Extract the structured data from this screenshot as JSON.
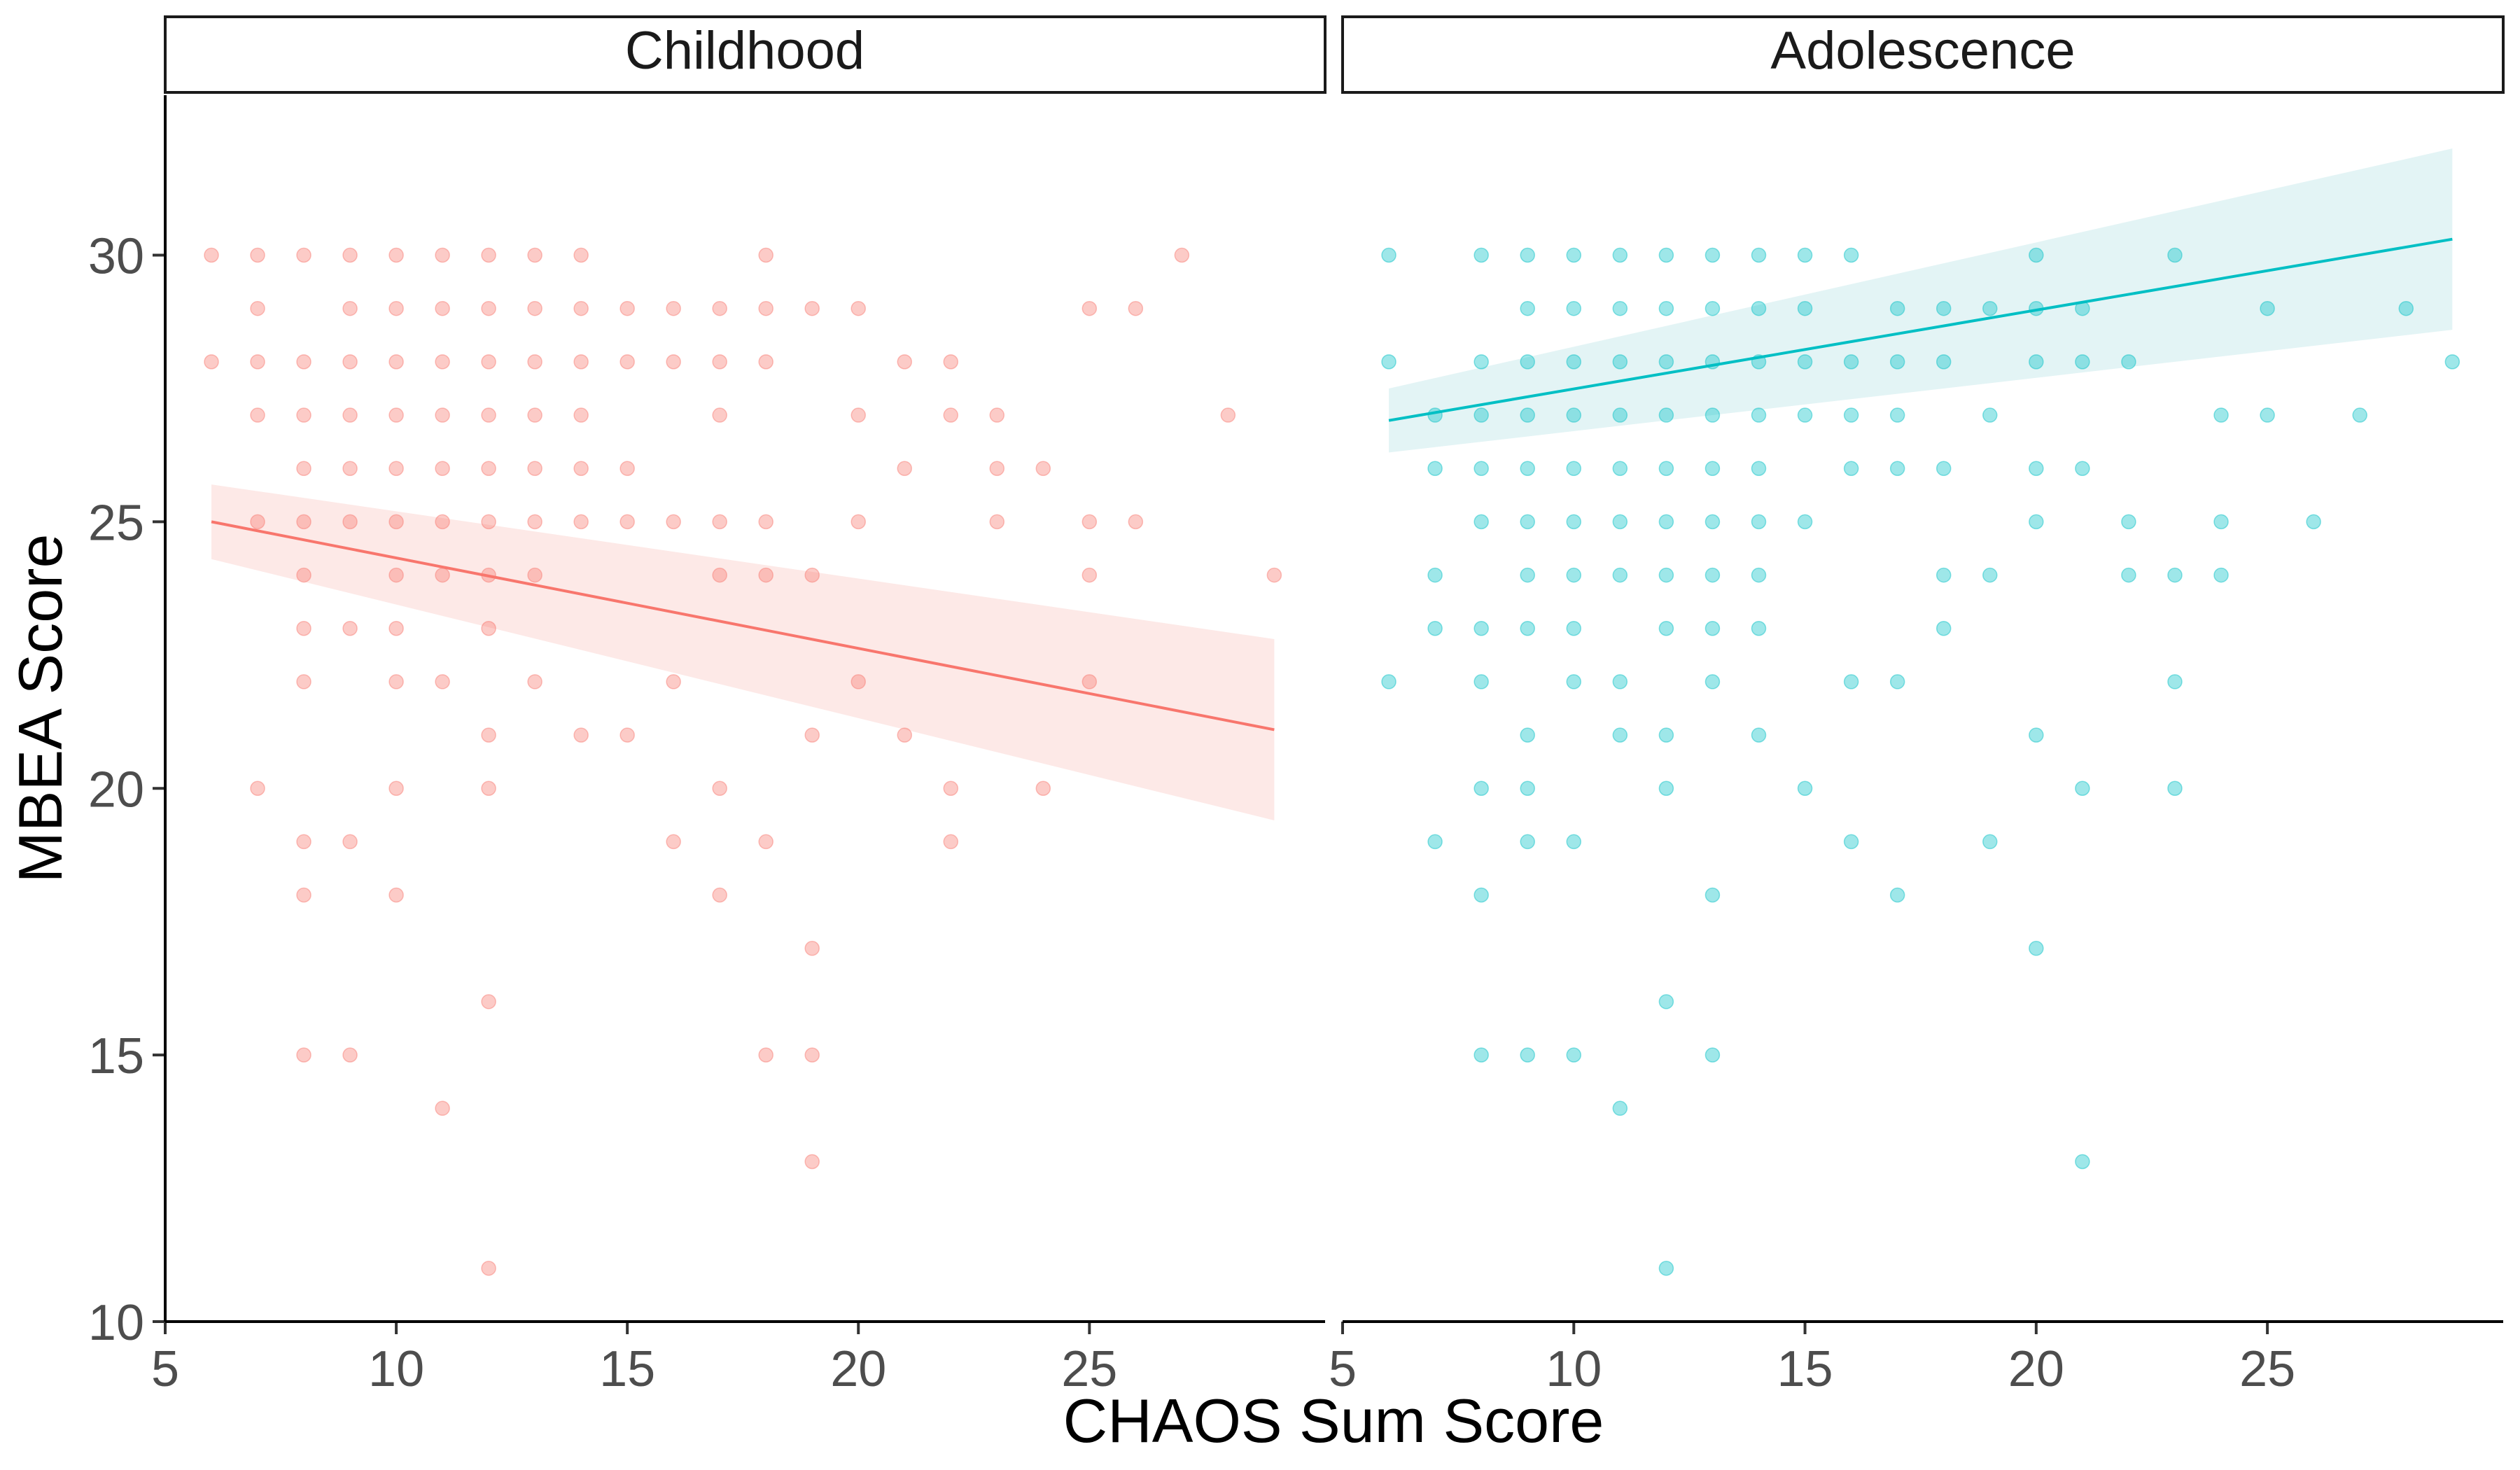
{
  "chart_data": {
    "type": "scatter",
    "xlabel": "CHAOS Sum Score",
    "ylabel": "MBEA Score",
    "xlim": [
      5,
      30.1
    ],
    "ylim": [
      10,
      33
    ],
    "x_ticks": [
      "5",
      "10",
      "15",
      "20",
      "25"
    ],
    "y_ticks": [
      "10",
      "15",
      "20",
      "25",
      "30"
    ],
    "grid": false,
    "legend": "none",
    "panels": [
      {
        "label": "Childhood",
        "color": "#F8766D",
        "fill": "#FDE9E7",
        "fit": {
          "x": [
            6,
            29
          ],
          "y": [
            25.0,
            21.1
          ]
        },
        "ribbon": {
          "x": [
            6,
            29
          ],
          "lower": [
            24.3,
            19.4
          ],
          "upper": [
            25.7,
            22.8
          ]
        },
        "points": [
          [
            6,
            30
          ],
          [
            6,
            28
          ],
          [
            7,
            30
          ],
          [
            7,
            29
          ],
          [
            7,
            28
          ],
          [
            7,
            27
          ],
          [
            7,
            25
          ],
          [
            7,
            20
          ],
          [
            8,
            30
          ],
          [
            8,
            28
          ],
          [
            8,
            27
          ],
          [
            8,
            26
          ],
          [
            8,
            25
          ],
          [
            8,
            24
          ],
          [
            8,
            23
          ],
          [
            8,
            22
          ],
          [
            8,
            19
          ],
          [
            8,
            18
          ],
          [
            8,
            15
          ],
          [
            9,
            30
          ],
          [
            9,
            29
          ],
          [
            9,
            28
          ],
          [
            9,
            27
          ],
          [
            9,
            26
          ],
          [
            9,
            25
          ],
          [
            9,
            23
          ],
          [
            9,
            19
          ],
          [
            9,
            15
          ],
          [
            10,
            30
          ],
          [
            10,
            29
          ],
          [
            10,
            28
          ],
          [
            10,
            27
          ],
          [
            10,
            26
          ],
          [
            10,
            25
          ],
          [
            10,
            24
          ],
          [
            10,
            23
          ],
          [
            10,
            22
          ],
          [
            10,
            20
          ],
          [
            10,
            18
          ],
          [
            11,
            30
          ],
          [
            11,
            29
          ],
          [
            11,
            28
          ],
          [
            11,
            27
          ],
          [
            11,
            26
          ],
          [
            11,
            25
          ],
          [
            11,
            24
          ],
          [
            11,
            22
          ],
          [
            11,
            14
          ],
          [
            12,
            30
          ],
          [
            12,
            29
          ],
          [
            12,
            28
          ],
          [
            12,
            27
          ],
          [
            12,
            26
          ],
          [
            12,
            25
          ],
          [
            12,
            24
          ],
          [
            12,
            23
          ],
          [
            12,
            21
          ],
          [
            12,
            20
          ],
          [
            12,
            16
          ],
          [
            12,
            11
          ],
          [
            13,
            30
          ],
          [
            13,
            29
          ],
          [
            13,
            28
          ],
          [
            13,
            27
          ],
          [
            13,
            26
          ],
          [
            13,
            25
          ],
          [
            13,
            24
          ],
          [
            13,
            22
          ],
          [
            14,
            30
          ],
          [
            14,
            29
          ],
          [
            14,
            28
          ],
          [
            14,
            27
          ],
          [
            14,
            26
          ],
          [
            14,
            25
          ],
          [
            14,
            21
          ],
          [
            15,
            29
          ],
          [
            15,
            28
          ],
          [
            15,
            26
          ],
          [
            15,
            25
          ],
          [
            15,
            21
          ],
          [
            16,
            29
          ],
          [
            16,
            28
          ],
          [
            16,
            25
          ],
          [
            16,
            22
          ],
          [
            16,
            19
          ],
          [
            17,
            29
          ],
          [
            17,
            28
          ],
          [
            17,
            27
          ],
          [
            17,
            25
          ],
          [
            17,
            24
          ],
          [
            17,
            20
          ],
          [
            17,
            18
          ],
          [
            18,
            30
          ],
          [
            18,
            29
          ],
          [
            18,
            28
          ],
          [
            18,
            25
          ],
          [
            18,
            24
          ],
          [
            18,
            19
          ],
          [
            18,
            15
          ],
          [
            19,
            29
          ],
          [
            19,
            24
          ],
          [
            19,
            21
          ],
          [
            19,
            17
          ],
          [
            19,
            15
          ],
          [
            19,
            13
          ],
          [
            20,
            29
          ],
          [
            20,
            27
          ],
          [
            20,
            25
          ],
          [
            20,
            22
          ],
          [
            21,
            28
          ],
          [
            21,
            26
          ],
          [
            21,
            21
          ],
          [
            22,
            28
          ],
          [
            22,
            27
          ],
          [
            22,
            20
          ],
          [
            22,
            19
          ],
          [
            23,
            27
          ],
          [
            23,
            26
          ],
          [
            23,
            25
          ],
          [
            24,
            26
          ],
          [
            24,
            20
          ],
          [
            25,
            29
          ],
          [
            25,
            25
          ],
          [
            25,
            24
          ],
          [
            25,
            22
          ],
          [
            26,
            29
          ],
          [
            26,
            25
          ],
          [
            27,
            30
          ],
          [
            28,
            27
          ],
          [
            29,
            24
          ]
        ]
      },
      {
        "label": "Adolescence",
        "color": "#00BFC4",
        "fill": "#E3F4F5",
        "fit": {
          "x": [
            6,
            29
          ],
          "y": [
            26.9,
            30.3
          ]
        },
        "ribbon": {
          "x": [
            6,
            29
          ],
          "lower": [
            26.3,
            28.6
          ],
          "upper": [
            27.5,
            32.0
          ]
        },
        "points": [
          [
            6,
            30
          ],
          [
            6,
            28
          ],
          [
            6,
            22
          ],
          [
            7,
            27
          ],
          [
            7,
            26
          ],
          [
            7,
            24
          ],
          [
            7,
            23
          ],
          [
            7,
            19
          ],
          [
            8,
            30
          ],
          [
            8,
            28
          ],
          [
            8,
            27
          ],
          [
            8,
            26
          ],
          [
            8,
            25
          ],
          [
            8,
            23
          ],
          [
            8,
            22
          ],
          [
            8,
            20
          ],
          [
            8,
            18
          ],
          [
            8,
            15
          ],
          [
            9,
            30
          ],
          [
            9,
            29
          ],
          [
            9,
            28
          ],
          [
            9,
            27
          ],
          [
            9,
            26
          ],
          [
            9,
            25
          ],
          [
            9,
            24
          ],
          [
            9,
            23
          ],
          [
            9,
            21
          ],
          [
            9,
            20
          ],
          [
            9,
            19
          ],
          [
            9,
            15
          ],
          [
            10,
            30
          ],
          [
            10,
            29
          ],
          [
            10,
            28
          ],
          [
            10,
            27
          ],
          [
            10,
            26
          ],
          [
            10,
            25
          ],
          [
            10,
            24
          ],
          [
            10,
            23
          ],
          [
            10,
            22
          ],
          [
            10,
            19
          ],
          [
            10,
            15
          ],
          [
            11,
            30
          ],
          [
            11,
            29
          ],
          [
            11,
            28
          ],
          [
            11,
            27
          ],
          [
            11,
            26
          ],
          [
            11,
            25
          ],
          [
            11,
            24
          ],
          [
            11,
            22
          ],
          [
            11,
            21
          ],
          [
            11,
            14
          ],
          [
            12,
            30
          ],
          [
            12,
            29
          ],
          [
            12,
            28
          ],
          [
            12,
            27
          ],
          [
            12,
            26
          ],
          [
            12,
            25
          ],
          [
            12,
            24
          ],
          [
            12,
            23
          ],
          [
            12,
            21
          ],
          [
            12,
            20
          ],
          [
            12,
            16
          ],
          [
            12,
            11
          ],
          [
            13,
            30
          ],
          [
            13,
            29
          ],
          [
            13,
            28
          ],
          [
            13,
            27
          ],
          [
            13,
            26
          ],
          [
            13,
            25
          ],
          [
            13,
            24
          ],
          [
            13,
            23
          ],
          [
            13,
            22
          ],
          [
            13,
            18
          ],
          [
            13,
            15
          ],
          [
            14,
            30
          ],
          [
            14,
            29
          ],
          [
            14,
            28
          ],
          [
            14,
            27
          ],
          [
            14,
            26
          ],
          [
            14,
            25
          ],
          [
            14,
            24
          ],
          [
            14,
            23
          ],
          [
            14,
            21
          ],
          [
            15,
            30
          ],
          [
            15,
            29
          ],
          [
            15,
            28
          ],
          [
            15,
            27
          ],
          [
            15,
            25
          ],
          [
            15,
            20
          ],
          [
            16,
            30
          ],
          [
            16,
            28
          ],
          [
            16,
            27
          ],
          [
            16,
            26
          ],
          [
            16,
            22
          ],
          [
            16,
            19
          ],
          [
            17,
            29
          ],
          [
            17,
            28
          ],
          [
            17,
            27
          ],
          [
            17,
            26
          ],
          [
            17,
            22
          ],
          [
            17,
            18
          ],
          [
            18,
            29
          ],
          [
            18,
            28
          ],
          [
            18,
            26
          ],
          [
            18,
            24
          ],
          [
            18,
            23
          ],
          [
            19,
            29
          ],
          [
            19,
            27
          ],
          [
            19,
            24
          ],
          [
            19,
            19
          ],
          [
            20,
            30
          ],
          [
            20,
            29
          ],
          [
            20,
            28
          ],
          [
            20,
            26
          ],
          [
            20,
            25
          ],
          [
            20,
            21
          ],
          [
            20,
            17
          ],
          [
            21,
            29
          ],
          [
            21,
            28
          ],
          [
            21,
            26
          ],
          [
            21,
            20
          ],
          [
            21,
            13
          ],
          [
            22,
            28
          ],
          [
            22,
            25
          ],
          [
            22,
            24
          ],
          [
            23,
            30
          ],
          [
            23,
            24
          ],
          [
            23,
            22
          ],
          [
            23,
            20
          ],
          [
            24,
            27
          ],
          [
            24,
            25
          ],
          [
            24,
            24
          ],
          [
            25,
            29
          ],
          [
            25,
            27
          ],
          [
            26,
            25
          ],
          [
            27,
            27
          ],
          [
            28,
            29
          ],
          [
            29,
            28
          ]
        ]
      }
    ]
  }
}
